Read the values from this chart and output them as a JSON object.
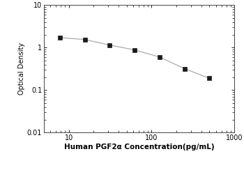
{
  "x": [
    7.8,
    15.6,
    31.25,
    62.5,
    125,
    250,
    500
  ],
  "y": [
    1.72,
    1.55,
    1.15,
    0.88,
    0.6,
    0.32,
    0.19
  ],
  "xlim": [
    5,
    1000
  ],
  "ylim": [
    0.01,
    10
  ],
  "xlabel": "Human PGF2α Concentration(pg/mL)",
  "ylabel": "Optical Density",
  "line_color": "#aaaaaa",
  "marker_color": "#1a1a1a",
  "marker": "s",
  "marker_size": 4,
  "background_color": "#ffffff",
  "spine_color": "#555555",
  "tick_label_size": 7,
  "xlabel_size": 7.5,
  "ylabel_size": 7
}
